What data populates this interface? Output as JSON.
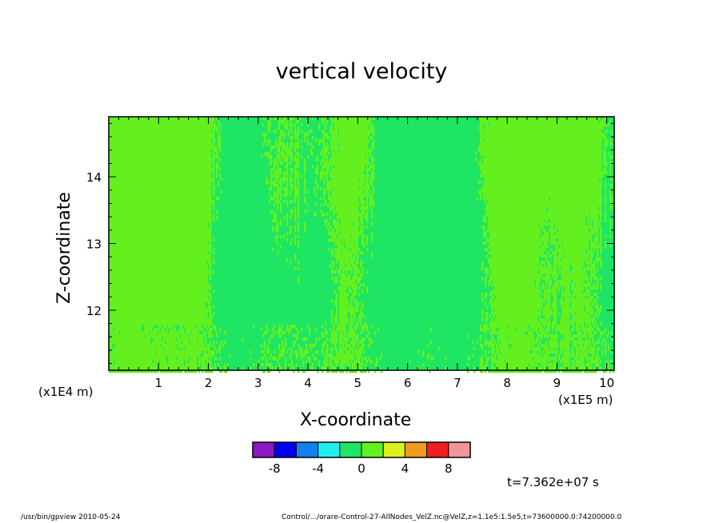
{
  "chart_data": {
    "type": "heatmap",
    "title": "vertical velocity",
    "xlabel": "X-coordinate",
    "ylabel": "Z-coordinate",
    "x_unit": "(x1E5 m)",
    "y_unit": "(x1E4 m)",
    "xlim": [
      0.0,
      10.15
    ],
    "ylim": [
      11.1,
      14.9
    ],
    "x_ticks": [
      1,
      2,
      3,
      4,
      5,
      6,
      7,
      8,
      9,
      10
    ],
    "x_tick_labels": [
      "1",
      "2",
      "3",
      "4",
      "5",
      "6",
      "7",
      "8",
      "9",
      "10"
    ],
    "y_ticks": [
      12,
      13,
      14
    ],
    "y_tick_labels": [
      "12",
      "13",
      "14"
    ],
    "colorbar": {
      "levels": [
        -10,
        -8,
        -6,
        -4,
        -2,
        0,
        2,
        4,
        6,
        8,
        10
      ],
      "tick_labels": [
        "-8",
        "-4",
        "0",
        "4",
        "8"
      ],
      "tick_values": [
        -8,
        -4,
        0,
        4,
        8
      ],
      "colors": [
        "#8a1ac0",
        "#0000f0",
        "#1480f0",
        "#1ef0f0",
        "#1ee664",
        "#64f01e",
        "#dcf01e",
        "#f09a1e",
        "#f01e1e",
        "#f09696"
      ]
    },
    "field_colors": {
      "negative_small": "#1ee664",
      "positive_small": "#64f01e"
    },
    "dominant_range": [
      -2,
      2
    ]
  },
  "time_info": "t=7.362e+07 s",
  "footer": {
    "left": "/usr/bin/gpview   2010-05-24",
    "right": "Control/.../orare-Control-27-AllNodes_VelZ.nc@VelZ,z=1.1e5:1.5e5,t=73600000.0:74200000.0"
  }
}
